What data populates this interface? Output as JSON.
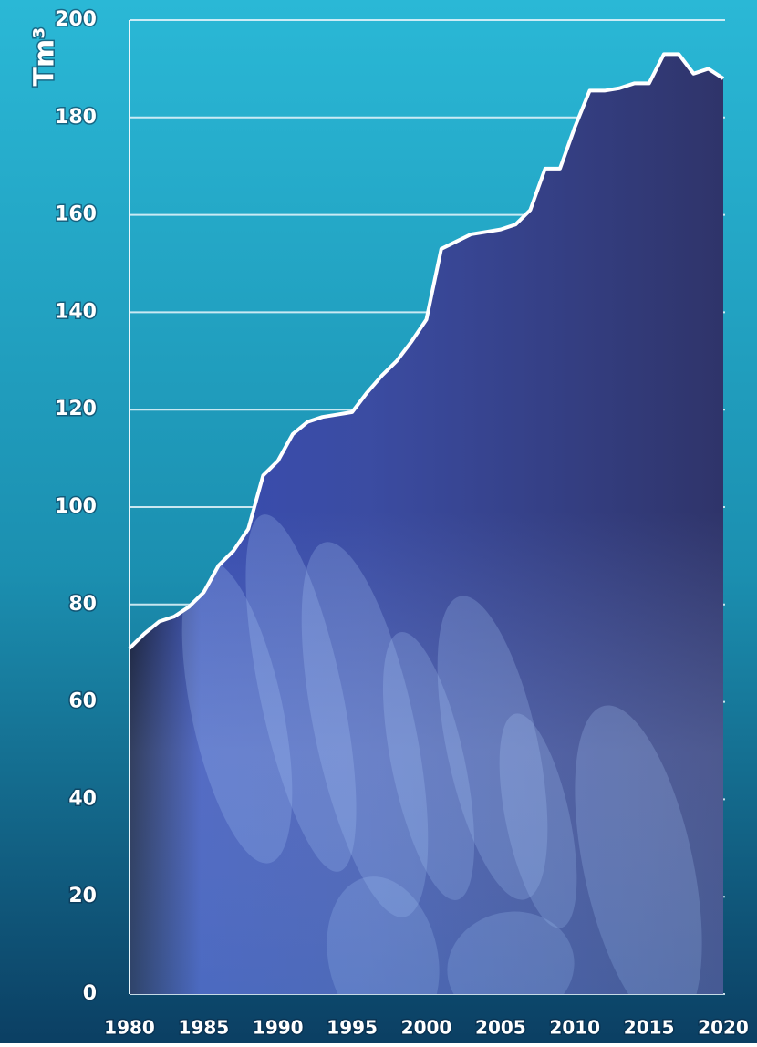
{
  "chart_data": {
    "type": "area",
    "y_label": "Tm³",
    "x": [
      1980,
      1981,
      1982,
      1983,
      1984,
      1985,
      1986,
      1987,
      1988,
      1989,
      1990,
      1991,
      1992,
      1993,
      1994,
      1995,
      1996,
      1997,
      1998,
      1999,
      2000,
      2001,
      2002,
      2003,
      2004,
      2005,
      2006,
      2007,
      2008,
      2009,
      2010,
      2011,
      2012,
      2013,
      2014,
      2015,
      2016,
      2017,
      2018,
      2019,
      2020
    ],
    "values": [
      71,
      74,
      76.5,
      77.5,
      79.5,
      82.5,
      88,
      91,
      95.5,
      106.5,
      109.5,
      115,
      117.5,
      118.5,
      119,
      119.5,
      123.5,
      127,
      130,
      134,
      138.5,
      153,
      154.5,
      156,
      156.5,
      157,
      158,
      161,
      169.5,
      169.5,
      178,
      185.5,
      185.5,
      186,
      187,
      187,
      193,
      193,
      189,
      190,
      188
    ],
    "color": "#2f3a80",
    "line_color": "#ffffff",
    "xlim": [
      1980,
      2020
    ],
    "xticks": [
      1980,
      1985,
      1990,
      1995,
      2000,
      2005,
      2010,
      2015,
      2020
    ],
    "ylim": [
      0,
      200
    ],
    "yticks": [
      0,
      20,
      40,
      60,
      80,
      100,
      120,
      140,
      160,
      180,
      200
    ],
    "grid": true
  }
}
